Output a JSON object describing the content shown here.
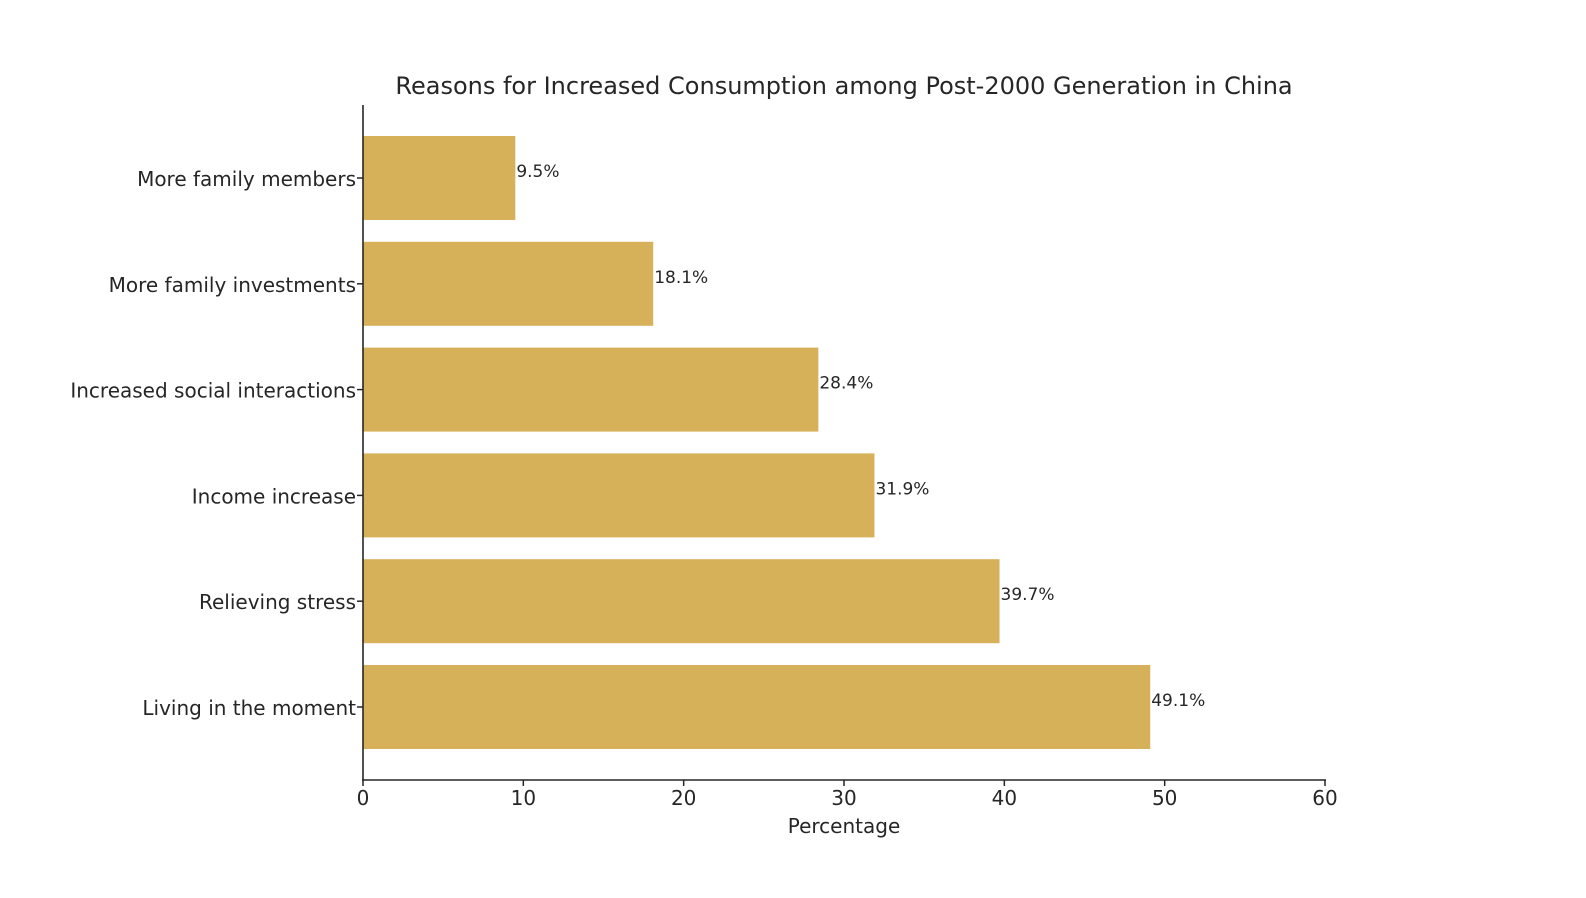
{
  "chart_data": {
    "type": "bar",
    "orientation": "horizontal",
    "title": "Reasons for Increased Consumption among Post-2000 Generation in China",
    "xlabel": "Percentage",
    "ylabel": "",
    "categories": [
      "Living in the moment",
      "Relieving stress",
      "Income increase",
      "Increased social interactions",
      "More family investments",
      "More family members"
    ],
    "values": [
      49.1,
      39.7,
      31.9,
      28.4,
      18.1,
      9.5
    ],
    "data_labels": [
      "49.1%",
      "39.7%",
      "31.9%",
      "28.4%",
      "18.1%",
      "9.5%"
    ],
    "xlim": [
      0,
      60
    ],
    "xticks": [
      "0",
      "10",
      "20",
      "30",
      "40",
      "50",
      "60"
    ],
    "grid": false,
    "bar_color": "#d7b15a"
  }
}
